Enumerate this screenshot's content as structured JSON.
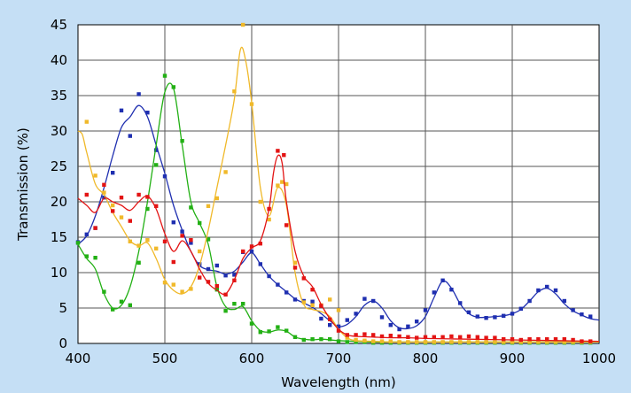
{
  "chart_data": {
    "type": "line",
    "title": "",
    "xlabel": "Wavelength (nm)",
    "ylabel": "Transmission (%)",
    "xlim": [
      400,
      1000
    ],
    "ylim": [
      0,
      45
    ],
    "x_ticks": [
      400,
      500,
      600,
      700,
      800,
      900,
      1000
    ],
    "y_ticks": [
      0,
      5,
      10,
      15,
      20,
      25,
      30,
      35,
      40,
      45
    ],
    "grid": true,
    "legend": "none",
    "background_color": "#c5dff5",
    "plot_background_color": "#ffffff",
    "series": [
      {
        "color": "#1f2fb0",
        "x": [
          400,
          410,
          420,
          430,
          440,
          450,
          460,
          470,
          480,
          490,
          500,
          510,
          520,
          530,
          540,
          550,
          560,
          570,
          580,
          590,
          600,
          610,
          620,
          630,
          640,
          650,
          660,
          670,
          680,
          690,
          700,
          710,
          720,
          730,
          740,
          750,
          760,
          770,
          780,
          790,
          800,
          810,
          820,
          830,
          840,
          850,
          860,
          870,
          880,
          890,
          900,
          910,
          920,
          930,
          940,
          950,
          960,
          970,
          980,
          990,
          1000
        ],
        "y": [
          14.0,
          15.2,
          18.0,
          22.0,
          26.5,
          30.5,
          32.0,
          33.6,
          32.0,
          28.0,
          24.0,
          19.5,
          16.0,
          13.0,
          11.0,
          10.4,
          10.2,
          9.8,
          10.2,
          11.5,
          12.8,
          11.2,
          9.5,
          8.3,
          7.3,
          6.3,
          5.7,
          5.1,
          4.2,
          3.2,
          2.4,
          2.7,
          3.8,
          5.4,
          6.0,
          5.0,
          3.2,
          2.2,
          2.1,
          2.5,
          3.8,
          6.5,
          8.8,
          7.8,
          5.6,
          4.2,
          3.7,
          3.7,
          3.8,
          3.9,
          4.2,
          4.8,
          6.0,
          7.3,
          7.8,
          7.0,
          5.6,
          4.6,
          4.0,
          3.5,
          3.3
        ],
        "points_x": [
          400,
          410,
          420,
          430,
          440,
          450,
          460,
          470,
          480,
          490,
          500,
          510,
          520,
          530,
          540,
          550,
          560,
          570,
          580,
          590,
          600,
          610,
          620,
          630,
          640,
          650,
          660,
          670,
          680,
          690,
          700,
          710,
          720,
          730,
          740,
          750,
          760,
          770,
          780,
          790,
          800,
          810,
          820,
          830,
          840,
          850,
          860,
          870,
          880,
          890,
          900,
          910,
          920,
          930,
          940,
          950,
          960,
          970,
          980,
          990
        ],
        "points_y": [
          14.3,
          15.4,
          16.3,
          20.6,
          24.1,
          32.9,
          29.3,
          35.2,
          32.6,
          27.3,
          23.6,
          17.1,
          15.8,
          14.2,
          11.2,
          10.5,
          11.0,
          9.6,
          9.7,
          12.9,
          13.0,
          11.2,
          9.5,
          8.3,
          7.2,
          6.2,
          6.0,
          5.9,
          3.5,
          2.6,
          2.4,
          3.3,
          4.2,
          6.3,
          6.0,
          3.7,
          2.6,
          2.0,
          2.4,
          3.1,
          4.7,
          7.2,
          8.9,
          7.6,
          5.7,
          4.4,
          3.8,
          3.6,
          3.7,
          3.9,
          4.2,
          4.9,
          6.0,
          7.5,
          8.0,
          7.5,
          6.0,
          4.7,
          4.1,
          3.8
        ]
      },
      {
        "color": "#22b014",
        "x": [
          400,
          410,
          420,
          430,
          440,
          450,
          460,
          470,
          480,
          490,
          500,
          510,
          520,
          530,
          540,
          550,
          560,
          570,
          580,
          590,
          600,
          610,
          620,
          630,
          640,
          650,
          660,
          670,
          680,
          690,
          700,
          720,
          740,
          760,
          780,
          800,
          850,
          900,
          950,
          1000
        ],
        "y": [
          14.0,
          12.0,
          10.5,
          7.0,
          5.0,
          5.4,
          8.0,
          13.0,
          20.0,
          28.0,
          35.5,
          36.0,
          28.0,
          20.0,
          17.0,
          14.0,
          8.0,
          5.2,
          4.8,
          5.2,
          3.2,
          1.8,
          1.6,
          1.9,
          1.7,
          0.9,
          0.6,
          0.5,
          0.6,
          0.5,
          0.4,
          0.3,
          0.2,
          0.2,
          0.2,
          0.2,
          0.2,
          0.2,
          0.2,
          0.2
        ],
        "points_x": [
          400,
          410,
          420,
          430,
          440,
          450,
          460,
          470,
          480,
          490,
          500,
          510,
          520,
          530,
          540,
          550,
          560,
          570,
          580,
          590,
          600,
          610,
          620,
          630,
          640,
          650,
          660,
          670,
          680,
          690,
          700,
          710,
          720,
          730,
          740,
          750,
          760,
          770,
          780,
          790,
          800,
          810,
          820,
          830,
          840,
          850,
          860,
          870,
          880,
          890,
          900,
          910,
          920,
          930,
          940,
          950,
          960,
          970,
          980,
          990
        ],
        "points_y": [
          14.2,
          12.3,
          12.1,
          7.3,
          4.8,
          5.9,
          5.4,
          11.4,
          19.0,
          25.2,
          37.8,
          36.2,
          28.6,
          19.2,
          17.0,
          14.7,
          7.6,
          4.6,
          5.6,
          5.6,
          2.8,
          1.6,
          1.7,
          2.3,
          1.8,
          0.9,
          0.5,
          0.6,
          0.6,
          0.6,
          0.3,
          0.2,
          0.2,
          0.2,
          0.1,
          0.1,
          0.1,
          0.1,
          0.1,
          0.1,
          0.1,
          0.1,
          0.1,
          0.1,
          0.1,
          0.1,
          0.1,
          0.1,
          0.1,
          0.1,
          0.1,
          0.1,
          0.1,
          0.1,
          0.1,
          0.1,
          0.1,
          0.1,
          0.1,
          0.1
        ]
      },
      {
        "color": "#f0b92a",
        "x": [
          400,
          405,
          410,
          420,
          430,
          440,
          450,
          460,
          470,
          480,
          490,
          500,
          510,
          520,
          530,
          540,
          550,
          560,
          570,
          580,
          587,
          593,
          600,
          610,
          620,
          630,
          640,
          650,
          660,
          670,
          680,
          690,
          700,
          710,
          720,
          740,
          760,
          780,
          800,
          850,
          900,
          950,
          1000
        ],
        "y": [
          30.0,
          29.5,
          27.0,
          22.5,
          21.0,
          18.5,
          16.5,
          14.5,
          13.8,
          14.2,
          12.0,
          9.0,
          7.5,
          7.0,
          8.0,
          11.0,
          16.0,
          22.0,
          28.0,
          34.5,
          41.5,
          40.0,
          34.0,
          22.0,
          18.0,
          22.0,
          19.5,
          10.0,
          5.5,
          4.8,
          4.5,
          3.8,
          2.0,
          0.8,
          0.4,
          0.3,
          0.2,
          0.2,
          0.2,
          0.2,
          0.2,
          0.2,
          0.2
        ],
        "points_x": [
          410,
          420,
          430,
          440,
          450,
          460,
          470,
          480,
          490,
          500,
          510,
          520,
          530,
          540,
          550,
          560,
          570,
          580,
          590,
          600,
          610,
          620,
          630,
          635,
          640,
          650,
          660,
          670,
          680,
          690,
          700,
          710,
          720,
          730,
          740,
          750,
          760,
          770,
          780,
          790,
          800,
          810,
          820,
          830,
          840,
          850,
          860,
          870,
          880,
          890,
          900,
          910,
          920,
          930,
          940,
          950,
          960,
          970,
          980,
          990
        ],
        "points_y": [
          31.3,
          23.7,
          21.3,
          19.5,
          17.8,
          14.4,
          13.8,
          14.6,
          13.4,
          8.6,
          8.3,
          7.3,
          7.7,
          13.0,
          19.4,
          20.5,
          24.2,
          35.6,
          45.0,
          33.8,
          20.0,
          17.5,
          22.3,
          22.8,
          22.5,
          11.4,
          5.8,
          5.4,
          5.4,
          6.2,
          4.7,
          0.8,
          0.5,
          0.4,
          0.3,
          0.3,
          0.3,
          0.2,
          0.2,
          0.2,
          0.2,
          0.2,
          0.2,
          0.2,
          0.2,
          0.2,
          0.2,
          0.2,
          0.2,
          0.2,
          0.2,
          0.2,
          0.2,
          0.2,
          0.2,
          0.2,
          0.2,
          0.2,
          0.2,
          0.2
        ]
      },
      {
        "color": "#e31414",
        "x": [
          400,
          410,
          420,
          430,
          440,
          450,
          460,
          470,
          480,
          490,
          500,
          510,
          520,
          530,
          540,
          550,
          560,
          570,
          580,
          590,
          600,
          610,
          620,
          625,
          630,
          635,
          640,
          650,
          660,
          670,
          680,
          690,
          700,
          710,
          720,
          740,
          760,
          780,
          800,
          850,
          900,
          950,
          1000
        ],
        "y": [
          20.5,
          19.5,
          18.5,
          20.5,
          20.0,
          19.5,
          18.8,
          20.0,
          20.8,
          19.0,
          15.5,
          13.0,
          14.5,
          13.0,
          10.5,
          8.5,
          7.5,
          7.0,
          9.0,
          12.0,
          13.5,
          14.5,
          19.0,
          24.0,
          26.5,
          25.5,
          20.0,
          13.0,
          9.5,
          8.0,
          5.5,
          3.5,
          2.0,
          1.2,
          1.0,
          0.9,
          0.8,
          0.8,
          0.7,
          0.6,
          0.5,
          0.4,
          0.3
        ],
        "points_x": [
          410,
          420,
          430,
          440,
          450,
          460,
          470,
          480,
          490,
          500,
          510,
          520,
          530,
          540,
          550,
          560,
          570,
          580,
          590,
          600,
          610,
          620,
          630,
          637,
          640,
          650,
          660,
          670,
          680,
          690,
          700,
          710,
          720,
          730,
          740,
          750,
          760,
          770,
          780,
          790,
          800,
          810,
          820,
          830,
          840,
          850,
          860,
          870,
          880,
          890,
          900,
          910,
          920,
          930,
          940,
          950,
          960,
          970,
          980,
          990
        ],
        "points_y": [
          21.0,
          16.3,
          22.4,
          18.7,
          20.6,
          17.3,
          21.0,
          20.7,
          19.4,
          14.4,
          11.5,
          15.2,
          14.6,
          9.3,
          8.7,
          8.1,
          6.9,
          8.9,
          13.0,
          13.7,
          14.1,
          19.0,
          27.2,
          26.6,
          16.7,
          10.7,
          9.2,
          7.6,
          5.3,
          3.4,
          1.8,
          1.2,
          1.2,
          1.3,
          1.2,
          1.0,
          1.1,
          1.0,
          0.9,
          0.8,
          0.9,
          0.9,
          0.9,
          1.0,
          0.9,
          1.0,
          0.9,
          0.8,
          0.8,
          0.6,
          0.6,
          0.5,
          0.6,
          0.6,
          0.6,
          0.6,
          0.6,
          0.5,
          0.3,
          0.3
        ]
      }
    ]
  }
}
